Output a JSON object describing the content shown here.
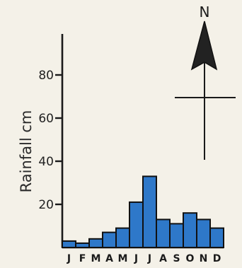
{
  "chart_data": {
    "type": "bar",
    "categories": [
      "J",
      "F",
      "M",
      "A",
      "M",
      "J",
      "J",
      "A",
      "S",
      "O",
      "N",
      "D"
    ],
    "values": [
      3,
      2,
      4,
      7,
      9,
      21,
      33,
      13,
      11,
      16,
      13,
      9
    ],
    "ylabel": "Rainfall cm",
    "xlabel": "",
    "ylim": [
      0,
      100
    ],
    "y_ticks": [
      20,
      40,
      60,
      80
    ],
    "y_tick_labels": [
      "20",
      "40",
      "60",
      "80"
    ],
    "bar_color": "#2e78c9",
    "grid": false
  },
  "compass": {
    "label": "N"
  }
}
